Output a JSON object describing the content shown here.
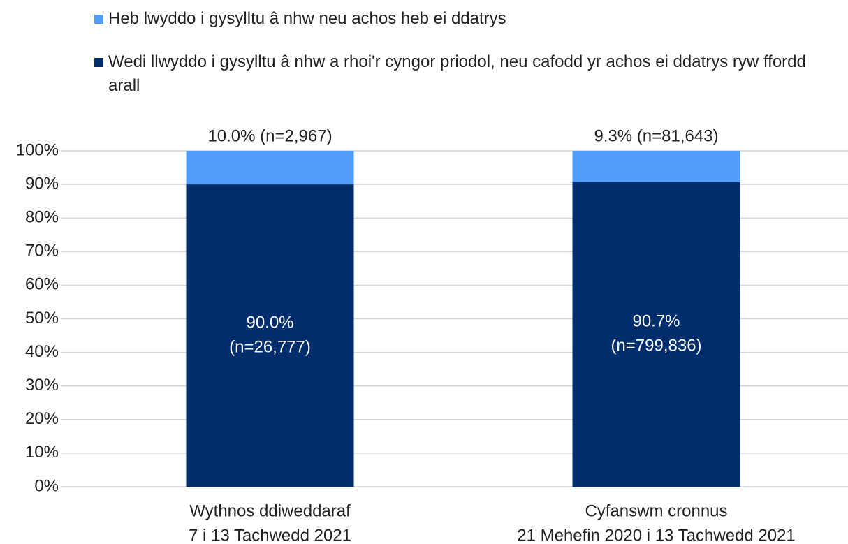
{
  "chart_data": {
    "type": "stacked_bar",
    "categories": [
      [
        "Wythnos ddiweddaraf",
        "7 i 13 Tachwedd 2021"
      ],
      [
        "Cyfanswm cronnus",
        "21 Mehefin 2020 i 13 Tachwedd 2021"
      ]
    ],
    "series": [
      {
        "name": "Wedi llwyddo i gysylltu â nhw a rhoi'r cyngor priodol, neu cafodd yr achos ei ddatrys ryw ffordd arall",
        "color": "#002d6b",
        "values": [
          90.0,
          90.7
        ],
        "value_labels": [
          [
            "90.0%",
            "(n=26,777)"
          ],
          [
            "90.7%",
            "(n=799,836)"
          ]
        ]
      },
      {
        "name": "Heb lwyddo i gysylltu â nhw neu achos heb ei ddatrys",
        "color": "#4f9cf9",
        "values": [
          10.0,
          9.3
        ],
        "value_labels": [
          [
            "10.0% (n=2,967)"
          ],
          [
            "9.3% (n=81,643)"
          ]
        ]
      }
    ],
    "legend_order": [
      1,
      0
    ],
    "ylim": [
      0,
      100
    ],
    "yticks": [
      {
        "value": 0,
        "label": "0%"
      },
      {
        "value": 10,
        "label": "10%"
      },
      {
        "value": 20,
        "label": "20%"
      },
      {
        "value": 30,
        "label": "30%"
      },
      {
        "value": 40,
        "label": "40%"
      },
      {
        "value": 50,
        "label": "50%"
      },
      {
        "value": 60,
        "label": "60%"
      },
      {
        "value": 70,
        "label": "70%"
      },
      {
        "value": 80,
        "label": "80%"
      },
      {
        "value": 90,
        "label": "90%"
      },
      {
        "value": 100,
        "label": "100%"
      }
    ],
    "grid": true
  }
}
